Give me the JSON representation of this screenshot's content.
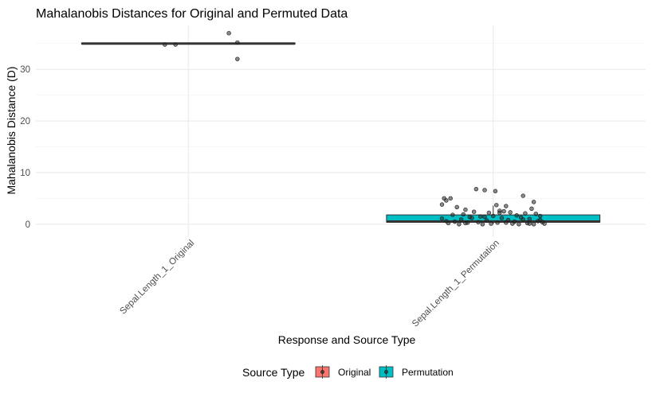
{
  "chart_data": {
    "type": "boxplot",
    "title": "Mahalanobis Distances for Original and Permuted Data",
    "xlabel": "Response and Source Type",
    "ylabel": "Mahalanobis Distance (D)",
    "ylim": [
      -2.5,
      38.5
    ],
    "yticks": [
      0,
      10,
      20,
      30
    ],
    "grid": true,
    "legend": {
      "title": "Source Type",
      "placement": "bottom",
      "entries": [
        {
          "label": "Original",
          "color": "#f8766d"
        },
        {
          "label": "Permutation",
          "color": "#00bfc4"
        }
      ]
    },
    "categories": [
      "Sepal.Length_1_Original",
      "Sepal.Length_1_Permutation"
    ],
    "boxes": [
      {
        "category": "Sepal.Length_1_Original",
        "source": "Original",
        "color": "#f8766d",
        "q1": 34.9,
        "median": 35.0,
        "q3": 35.1,
        "whisker_low": 34.9,
        "whisker_high": 35.1
      },
      {
        "category": "Sepal.Length_1_Permutation",
        "source": "Permutation",
        "color": "#00bfc4",
        "q1": 0.4,
        "median": 0.5,
        "q3": 1.8,
        "whisker_low": 0.0,
        "whisker_high": 3.6
      }
    ],
    "points": [
      {
        "category": "Sepal.Length_1_Original",
        "jitter": 0.2,
        "values": [
          34.8,
          34.8,
          37.0,
          35.2,
          32.0
        ],
        "jitter_offsets": [
          -0.22,
          -0.12,
          0.38,
          0.46,
          0.46
        ]
      },
      {
        "category": "Sepal.Length_1_Permutation",
        "jitter": 0.2,
        "values": [
          6.8,
          6.6,
          6.4,
          5.5,
          5.0,
          5.0,
          4.6,
          4.3,
          3.8,
          3.7,
          3.5,
          3.3,
          3.0,
          2.8,
          2.6,
          2.5,
          2.4,
          2.3,
          2.2,
          2.1,
          2.0,
          1.9,
          1.8,
          1.7,
          1.6,
          1.5,
          1.4,
          1.3,
          1.2,
          1.1,
          1.0,
          0.9,
          0.8,
          0.7,
          0.6,
          0.5,
          0.5,
          0.4,
          0.4,
          0.3,
          0.3,
          0.2,
          0.2,
          0.1,
          0.1,
          0.1,
          0.0,
          0.0,
          0.0,
          0.0,
          1.6,
          1.2,
          0.9,
          0.6,
          0.3,
          2.2,
          1.4,
          0.8,
          0.2,
          0.1
        ],
        "jitter_offsets": [
          -0.16,
          -0.08,
          0.02,
          0.28,
          -0.46,
          -0.4,
          -0.44,
          0.38,
          -0.48,
          0.03,
          0.12,
          -0.34,
          0.36,
          -0.26,
          0.06,
          0.1,
          -0.18,
          0.16,
          -0.04,
          0.3,
          0.4,
          -0.28,
          -0.38,
          0.22,
          0.44,
          -0.12,
          -0.22,
          0.26,
          0.08,
          -0.48,
          0.34,
          -0.3,
          0.14,
          -0.06,
          0.42,
          -0.36,
          0.2,
          -0.14,
          0.46,
          -0.24,
          0.04,
          0.32,
          -0.42,
          0.18,
          -0.02,
          0.48,
          -0.32,
          0.24,
          -0.1,
          0.38,
          0.0,
          -0.2,
          0.28,
          -0.44,
          0.12,
          0.06,
          -0.08,
          0.44,
          -0.26,
          0.34
        ]
      }
    ]
  }
}
